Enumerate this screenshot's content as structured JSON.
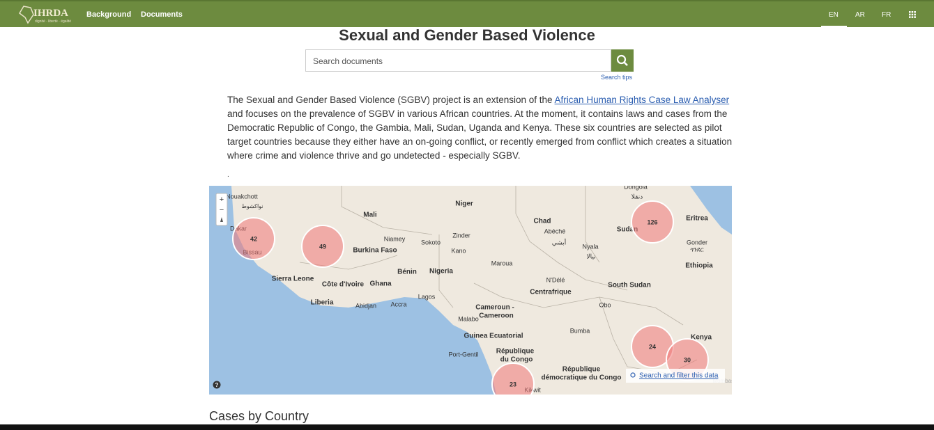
{
  "nav": {
    "logo": "IHRDA",
    "logo_tagline": "dignité · liberté · égalité",
    "links": [
      "Background",
      "Documents"
    ],
    "languages": [
      "EN",
      "AR",
      "FR"
    ],
    "active_language": "EN"
  },
  "header": {
    "title": "Sexual and Gender Based Violence",
    "search_placeholder": "Search documents",
    "search_tips": "Search tips"
  },
  "intro": {
    "before": "The Sexual and Gender Based Violence (SGBV) project is an extension of the ",
    "link": "African Human Rights Case Law Analyser",
    "after": " and focuses on the prevalence of SGBV in various African countries. At the moment, it contains laws and cases from the Democratic Republic of Congo, the Gambia, Mali, Sudan, Uganda and Kenya. These six countries are selected as pilot target countries because they either have an on-going conflict, or recently emerged from conflict which creates a situation where crime and violence thrive and go undetected - especially SGBV.",
    "dot": "."
  },
  "map": {
    "zoom_in": "+",
    "zoom_out": "−",
    "help": "?",
    "filter_link": "Search and filter this data",
    "places": [
      "Nouakchott",
      "نواكشوط",
      "Dakar",
      "Bissau",
      "Mali",
      "Niger",
      "Niamey",
      "Zinder",
      "Sokoto",
      "Kano",
      "Burkina Faso",
      "Bénin",
      "Nigeria",
      "Maroua",
      "Chad",
      "Abéché",
      "أبشي",
      "Nyala",
      "نيالا",
      "Sudan",
      "Dongola",
      "دنقلا",
      "Eritrea",
      "Gonder",
      "ጎንደር",
      "Ethiopia",
      "South Sudan",
      "N'Délé",
      "Centrafrique",
      "Obo",
      "Sierra Leone",
      "Côte d'Ivoire",
      "Ghana",
      "Liberia",
      "Abidjan",
      "Accra",
      "Lagos",
      "Cameroun -",
      "Cameroon",
      "Malabo",
      "Guinea Ecuatorial",
      "Bumba",
      "Kenya",
      "Port-Gentil",
      "République",
      "du Congo",
      "République",
      "démocratique du Congo",
      "Kikwit",
      "Mombasa"
    ],
    "clusters": [
      42,
      49,
      126,
      24,
      30,
      23
    ]
  },
  "section": {
    "title": "Cases by Country"
  }
}
